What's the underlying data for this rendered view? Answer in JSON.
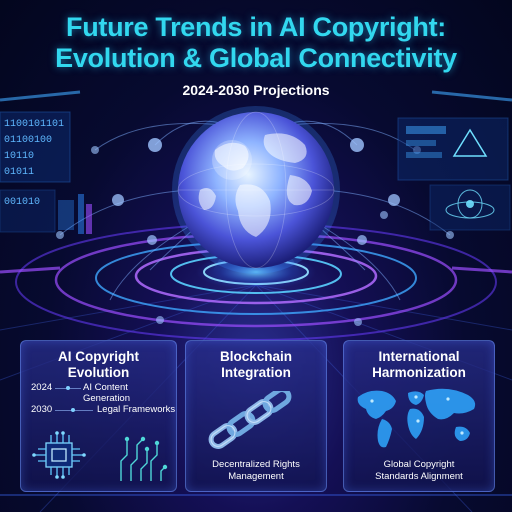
{
  "header": {
    "title_line1": "Future Trends in AI Copyright:",
    "title_line2": "Evolution & Global Connectivity",
    "subtitle": "2024-2030 Projections"
  },
  "panels": {
    "ai": {
      "title_line1": "AI Copyright",
      "title_line2": "Evolution",
      "timeline": [
        {
          "year": "2024",
          "label": "AI Content Generation"
        },
        {
          "year": "2030",
          "label": "Legal Frameworks"
        }
      ],
      "icons": [
        "chip-icon",
        "circuit-icon"
      ]
    },
    "blockchain": {
      "title_line1": "Blockchain",
      "title_line2": "Integration",
      "caption_line1": "Decentralized Rights",
      "caption_line2": "Management",
      "icon": "chain-icon"
    },
    "harmonization": {
      "title_line1": "International",
      "title_line2": "Harmonization",
      "caption_line1": "Global Copyright",
      "caption_line2": "Standards Alignment",
      "icon": "world-map-icon"
    }
  },
  "decor": {
    "binary_rows": [
      "1100101101",
      "01100100",
      "10110",
      "01011",
      "001010"
    ],
    "colors": {
      "accent": "#32d8ef",
      "glow": "#3fa8ff",
      "purple": "#8a4dff"
    }
  }
}
